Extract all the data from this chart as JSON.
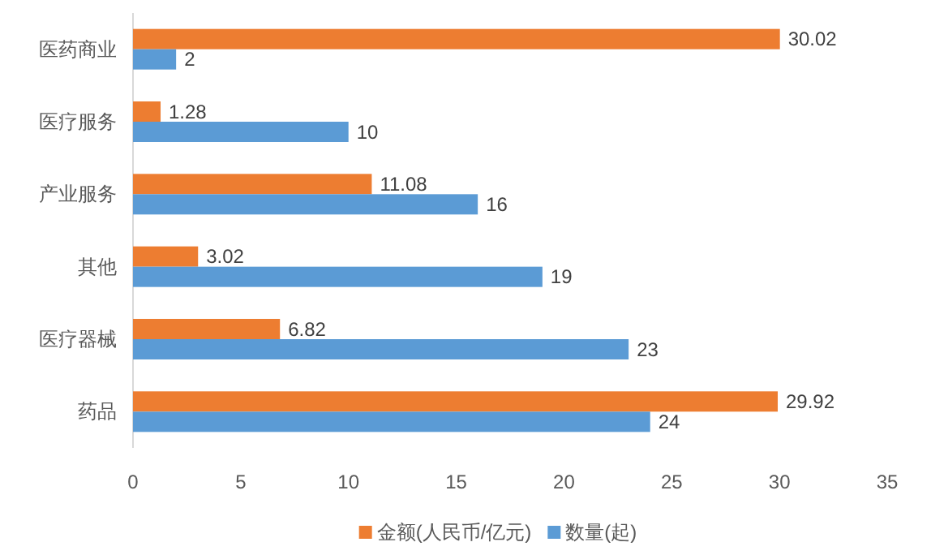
{
  "chart_data": {
    "type": "bar",
    "orientation": "horizontal",
    "categories": [
      "医药商业",
      "医疗服务",
      "产业服务",
      "其他",
      "医疗器械",
      "药品"
    ],
    "series": [
      {
        "name": "金额(人民币/亿元)",
        "color": "#ed7d31",
        "values": [
          30.02,
          1.28,
          11.08,
          3.02,
          6.82,
          29.92
        ]
      },
      {
        "name": "数量(起)",
        "color": "#5b9bd5",
        "values": [
          2,
          10,
          16,
          19,
          23,
          24
        ]
      }
    ],
    "xlim": [
      0,
      35
    ],
    "xticks": [
      0,
      5,
      10,
      15,
      20,
      25,
      30,
      35
    ],
    "data_labels": true,
    "legend": "bottom"
  }
}
